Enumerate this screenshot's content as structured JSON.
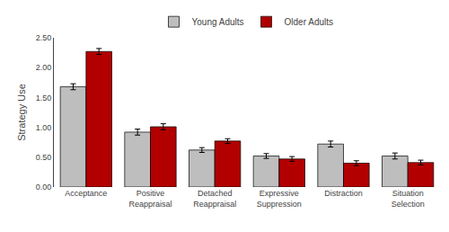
{
  "chart_data": {
    "type": "bar",
    "categories": [
      "Acceptance",
      "Positive\nReappraisal",
      "Detached\nReappraisal",
      "Expressive\nSuppression",
      "Distraction",
      "Situation\nSelection"
    ],
    "series": [
      {
        "name": "Young Adults",
        "color": "#BEBEBE",
        "values": [
          1.68,
          0.92,
          0.62,
          0.52,
          0.72,
          0.52
        ],
        "errors": [
          0.05,
          0.05,
          0.04,
          0.04,
          0.05,
          0.05
        ]
      },
      {
        "name": "Older Adults",
        "color": "#B20000",
        "values": [
          2.27,
          1.01,
          0.77,
          0.47,
          0.4,
          0.41
        ],
        "errors": [
          0.05,
          0.05,
          0.04,
          0.04,
          0.04,
          0.04
        ]
      }
    ],
    "ylabel": "Strategy Use",
    "ylim": [
      0.0,
      2.5
    ],
    "yticks": [
      {
        "value": 0,
        "label": "0.00"
      },
      {
        "value": 0.5,
        "label": "0.50"
      },
      {
        "value": 1,
        "label": "1.00"
      },
      {
        "value": 1.5,
        "label": "1.50"
      },
      {
        "value": 2,
        "label": "2.00"
      },
      {
        "value": 2.5,
        "label": "2.50"
      }
    ],
    "grid": false,
    "legend": "top"
  }
}
